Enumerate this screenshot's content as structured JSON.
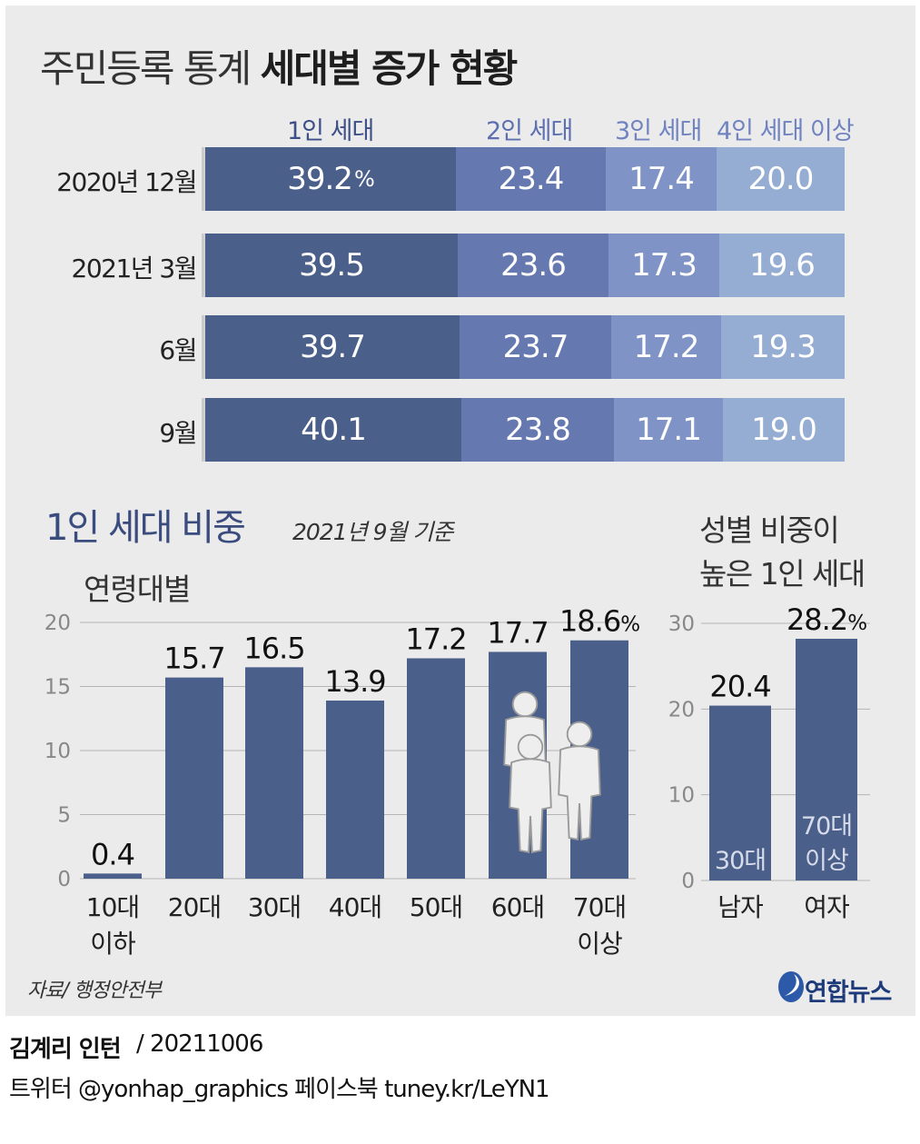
{
  "title": {
    "light": "주민등록 통계",
    "bold": "세대별 증가 현황"
  },
  "stack_chart": {
    "categories": [
      "1인 세대",
      "2인 세대",
      "3인 세대",
      "4인 세대 이상"
    ],
    "colors": [
      "#4a5f8a",
      "#6578b0",
      "#7f93c7",
      "#95add2"
    ],
    "header_colors": [
      "#3d4f86",
      "#5d6fb0",
      "#7083c0",
      "#7083c0"
    ],
    "unit": "%",
    "rows": [
      {
        "label": "2020년 12월",
        "values": [
          39.2,
          23.4,
          17.4,
          20.0
        ],
        "display": [
          "39.2",
          "23.4",
          "17.4",
          "20.0"
        ]
      },
      {
        "label": "2021년 3월",
        "values": [
          39.5,
          23.6,
          17.3,
          19.6
        ],
        "display": [
          "39.5",
          "23.6",
          "17.3",
          "19.6"
        ]
      },
      {
        "label": "6월",
        "values": [
          39.7,
          23.7,
          17.2,
          19.3
        ],
        "display": [
          "39.7",
          "23.7",
          "17.2",
          "19.3"
        ]
      },
      {
        "label": "9월",
        "values": [
          40.1,
          23.8,
          17.1,
          19.0
        ],
        "display": [
          "40.1",
          "23.8",
          "17.1",
          "19.0"
        ]
      }
    ]
  },
  "section": {
    "title": "1인 세대 비중",
    "subtitle": "2021년 9월 기준"
  },
  "chart_data": [
    {
      "type": "bar",
      "title": "연령대별",
      "categories": [
        "10대 이하",
        "20대",
        "30대",
        "40대",
        "50대",
        "60대",
        "70대 이상"
      ],
      "category_lines": [
        [
          "10대",
          "이하"
        ],
        [
          "20대"
        ],
        [
          "30대"
        ],
        [
          "40대"
        ],
        [
          "50대"
        ],
        [
          "60대"
        ],
        [
          "70대",
          "이상"
        ]
      ],
      "values": [
        0.4,
        15.7,
        16.5,
        13.9,
        17.2,
        17.7,
        18.6
      ],
      "value_labels": [
        "0.4",
        "15.7",
        "16.5",
        "13.9",
        "17.2",
        "17.7",
        "18.6"
      ],
      "unit": "%",
      "ylim": [
        0,
        20
      ],
      "yticks": [
        "0",
        "5",
        "10",
        "15",
        "20"
      ],
      "ytick_values": [
        0,
        5,
        10,
        15,
        20
      ],
      "grid": true,
      "bar_color": "#4a5f8a"
    },
    {
      "type": "bar",
      "title": "성별 비중이 높은 1인 세대",
      "title_lines": [
        "성별 비중이",
        "높은 1인 세대"
      ],
      "categories": [
        "남자",
        "여자"
      ],
      "values": [
        20.4,
        28.2
      ],
      "value_labels": [
        "20.4",
        "28.2"
      ],
      "unit": "%",
      "annotations": [
        [
          "30대"
        ],
        [
          "70대",
          "이상"
        ]
      ],
      "ylim": [
        0,
        30
      ],
      "yticks": [
        "0",
        "10",
        "20",
        "30"
      ],
      "ytick_values": [
        0,
        10,
        20,
        30
      ],
      "grid": true,
      "bar_color": "#4a5f8a"
    }
  ],
  "source": "자료/ 행정안전부",
  "credit": {
    "author": "김계리 인턴",
    "date": "/ 20211006",
    "sns": "트위터 @yonhap_graphics  페이스북 tuney.kr/LeYN1"
  },
  "logo": {
    "text": "연합뉴스",
    "icon": "yonhap-swirl-icon"
  }
}
